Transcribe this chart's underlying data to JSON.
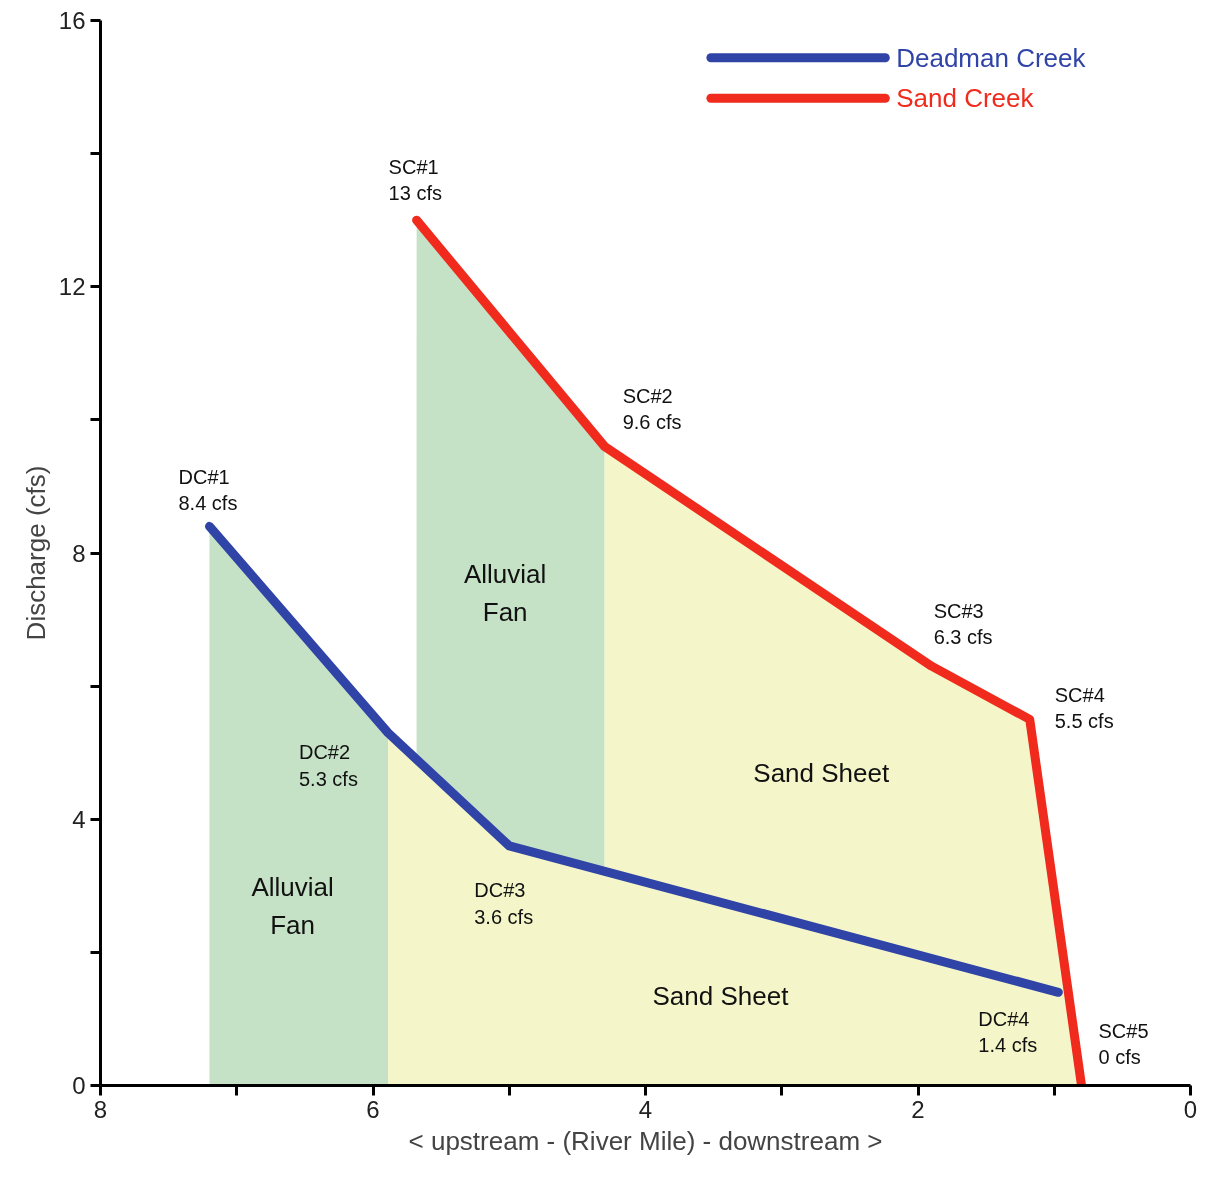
{
  "chart_data": {
    "type": "line",
    "xlabel": "< upstream - (River Mile) - downstream >",
    "ylabel": "Discharge (cfs)",
    "xlim": [
      8,
      0
    ],
    "xticks": [
      0,
      {
        "value": 1,
        "label": null
      },
      2,
      {
        "value": 3,
        "label": null
      },
      4,
      {
        "value": 5,
        "label": null
      },
      6,
      {
        "value": 7,
        "label": null
      },
      8
    ],
    "ylim": [
      0,
      16
    ],
    "yticks": [
      0,
      {
        "value": 2,
        "label": null
      },
      4,
      {
        "value": 6,
        "label": null
      },
      8,
      {
        "value": 10,
        "label": null
      },
      12,
      {
        "value": 14,
        "label": null
      },
      16
    ],
    "grid": false,
    "legend": "top right",
    "marker": "none",
    "line_style": "solid",
    "series": [
      {
        "type": "area",
        "color": "#c6e2c6",
        "x": [
          5.68,
          4.3
        ],
        "values": [
          13,
          9.6
        ]
      },
      {
        "type": "area",
        "color": "#f4f6c9",
        "x": [
          4.3,
          1.9,
          1.18,
          0.8
        ],
        "values": [
          9.6,
          6.3,
          5.5,
          0
        ]
      },
      {
        "type": "area",
        "color": "#c6e2c6",
        "x": [
          7.2,
          5.89
        ],
        "values": [
          8.4,
          5.3
        ]
      },
      {
        "type": "area",
        "color": "#f4f6c9",
        "x": [
          5.89,
          5.0,
          0.97
        ],
        "values": [
          5.3,
          3.6,
          1.4
        ]
      },
      {
        "name": "Deadman Creek",
        "color": "#3044a8",
        "x": [
          7.2,
          5.89,
          5.0,
          0.97
        ],
        "values": [
          8.4,
          5.3,
          3.6,
          1.4
        ],
        "value_labels": [
          "DC#1\n8.4 cfs",
          "DC#2\n5.3 cfs",
          "DC#3\n3.6 cfs",
          "DC#4\n1.4 cfs"
        ]
      },
      {
        "name": "Sand Creek",
        "color": "#f02a1c",
        "x": [
          5.68,
          4.3,
          1.9,
          1.18,
          0.8
        ],
        "values": [
          13,
          9.6,
          6.3,
          5.5,
          0
        ],
        "value_labels": [
          "SC#1\n13 cfs",
          "SC#2\n9.6 cfs",
          "SC#3\n6.3 cfs",
          "SC#4\n5.5 cfs",
          "SC#5\n0 cfs"
        ]
      }
    ],
    "annotations": [
      "Alluvial\nFan",
      "Alluvial\nFan",
      "Sand Sheet",
      "Sand Sheet"
    ]
  }
}
